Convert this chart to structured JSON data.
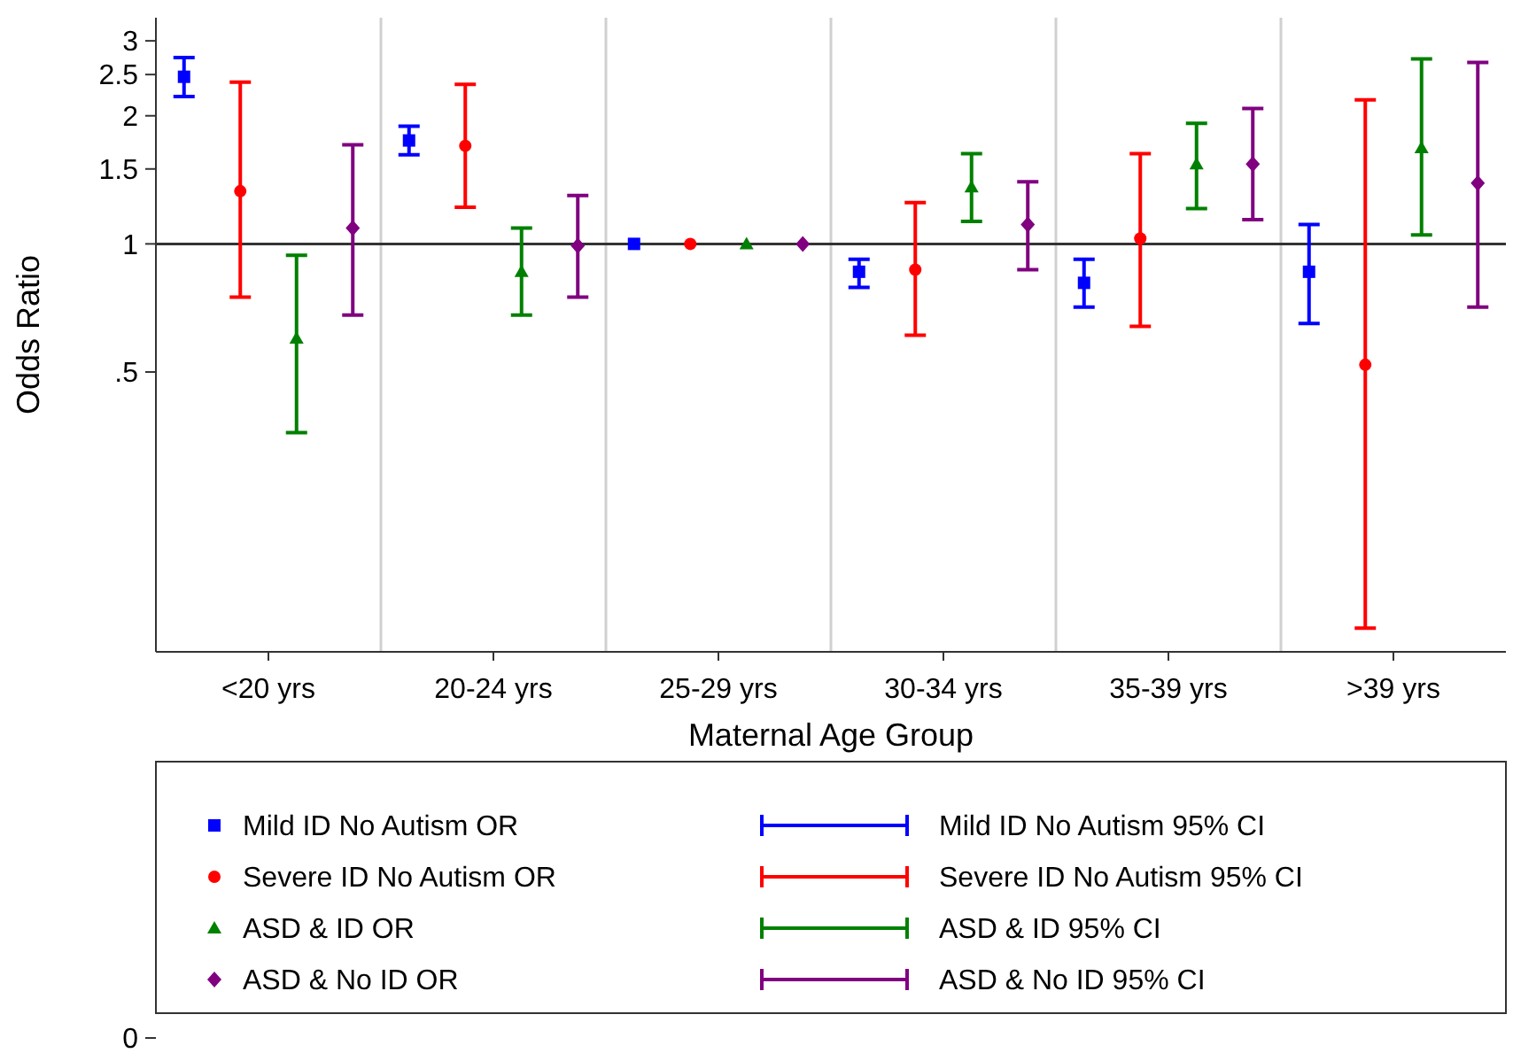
{
  "chart_data": {
    "type": "scatter",
    "xlabel": "Maternal Age Group",
    "ylabel": "Odds Ratio",
    "categories": [
      "<20 yrs",
      "20-24 yrs",
      "25-29 yrs",
      "30-34 yrs",
      "35-39 yrs",
      ">39 yrs"
    ],
    "log": "y",
    "ylim": [
      0.11,
      3.4
    ],
    "yticks": [
      {
        "value": 0.5,
        "label": ".5"
      },
      1,
      1.5,
      2,
      2.5,
      3
    ],
    "grid": "x",
    "legend": "bottom",
    "ref_lines": [
      {
        "axis": "y",
        "value": 1,
        "color": "#333333"
      }
    ],
    "series": [
      {
        "name": "Mild ID No Autism OR",
        "color": "#0000ff",
        "marker": "square",
        "values": [
          2.47,
          1.75,
          1,
          0.86,
          0.81,
          0.86
        ],
        "errors": [
          [
            2.22,
            2.74
          ],
          [
            1.62,
            1.89
          ],
          null,
          [
            0.79,
            0.92
          ],
          [
            0.71,
            0.92
          ],
          [
            0.65,
            1.11
          ]
        ]
      },
      {
        "name": "Severe ID No Autism OR",
        "color": "#ff0000",
        "marker": "circle",
        "values": [
          1.33,
          1.7,
          1,
          0.87,
          1.03,
          0.52
        ],
        "errors": [
          [
            0.75,
            2.4
          ],
          [
            1.22,
            2.37
          ],
          null,
          [
            0.61,
            1.25
          ],
          [
            0.64,
            1.63
          ],
          [
            0.125,
            2.18
          ]
        ]
      },
      {
        "name": "ASD & ID OR",
        "color": "#008000",
        "marker": "triangle",
        "values": [
          0.6,
          0.86,
          1,
          1.36,
          1.54,
          1.68
        ],
        "errors": [
          [
            0.36,
            0.94
          ],
          [
            0.68,
            1.09
          ],
          null,
          [
            1.13,
            1.63
          ],
          [
            1.21,
            1.92
          ],
          [
            1.05,
            2.72
          ]
        ]
      },
      {
        "name": "ASD & No ID OR",
        "color": "#800080",
        "marker": "diamond",
        "values": [
          1.09,
          0.99,
          1,
          1.11,
          1.54,
          1.39
        ],
        "errors": [
          [
            0.68,
            1.71
          ],
          [
            0.75,
            1.3
          ],
          null,
          [
            0.87,
            1.4
          ],
          [
            1.14,
            2.08
          ],
          [
            0.71,
            2.67
          ]
        ]
      }
    ],
    "annotations": [
      "Mild ID No Autism 95% CI",
      "Severe ID No Autism 95% CI",
      "ASD & ID 95% CI",
      "ASD & No ID 95% CI",
      "0"
    ]
  }
}
